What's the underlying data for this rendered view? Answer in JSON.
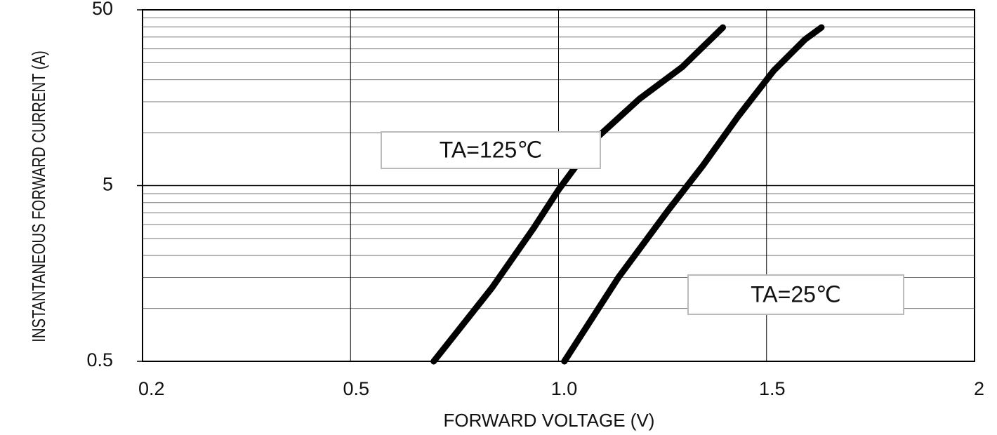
{
  "chart_data": {
    "type": "line",
    "x_label": "FORWARD VOLTAGE (V)",
    "y_label": "INSTANTANEOUS FORWARD CURRENT (A)",
    "xlim": [
      0.2,
      2
    ],
    "xticks": [
      0.2,
      0.5,
      {
        "value": 1,
        "label": "1.0"
      },
      1.5,
      2
    ],
    "ylim": [
      0.5,
      50
    ],
    "yticks": [
      0.5,
      5,
      50
    ],
    "y_minor_gridlines": [
      1,
      1.5,
      2,
      2.5,
      3,
      3.5,
      4,
      4.5,
      10,
      15,
      20,
      25,
      30,
      35,
      40,
      45
    ],
    "y_log": true,
    "grid": true,
    "series": [
      {
        "name": "TA=125℃",
        "color": "#000000",
        "x": [
          0.7,
          0.84,
          0.94,
          1.0,
          1.093,
          1.195,
          1.297,
          1.395
        ],
        "values": [
          0.5,
          1.31,
          2.86,
          4.73,
          9.4,
          15.6,
          23.6,
          39.7
        ]
      },
      {
        "name": "TA=25℃",
        "color": "#000000",
        "x": [
          1.014,
          1.144,
          1.263,
          1.347,
          1.432,
          1.517,
          1.593,
          1.632
        ],
        "values": [
          0.5,
          1.5,
          3.6,
          6.5,
          12.4,
          22.5,
          34,
          39.7
        ]
      }
    ]
  }
}
